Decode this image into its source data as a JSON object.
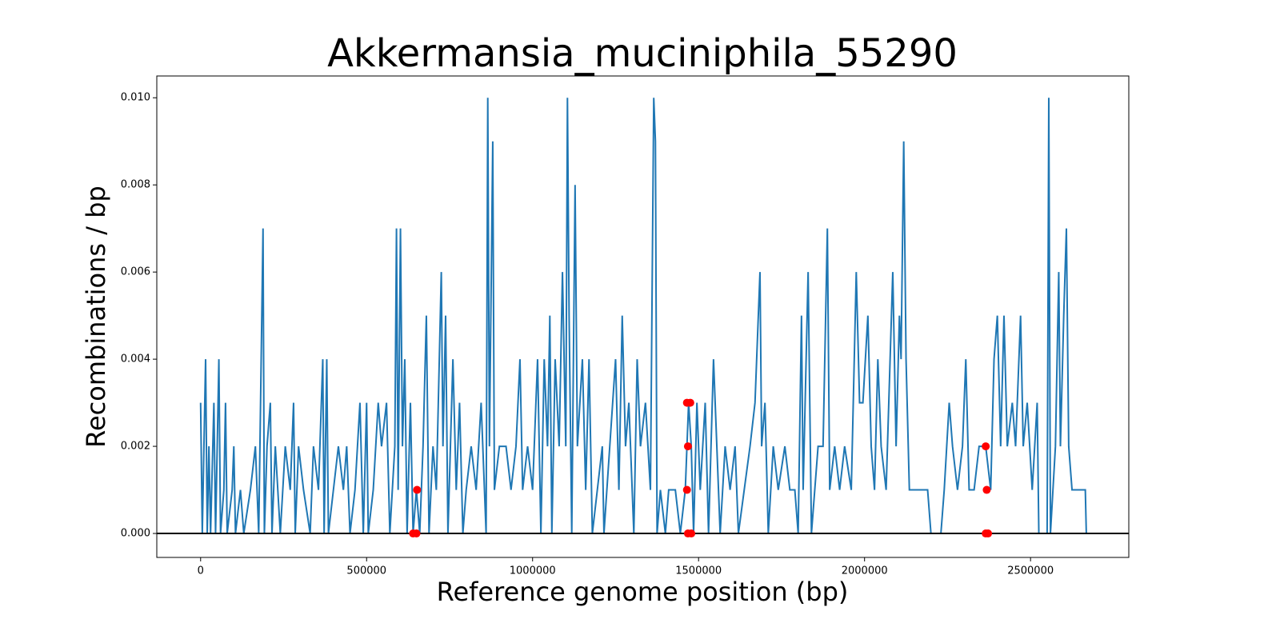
{
  "chart_data": {
    "type": "line",
    "title": "Akkermansia_muciniphila_55290",
    "xlabel": "Reference genome position (bp)",
    "ylabel": "Recombinations / bp",
    "xlim": [
      -132000,
      2796000
    ],
    "ylim": [
      -0.00055,
      0.0105
    ],
    "xticks": [
      0,
      500000,
      1000000,
      1500000,
      2000000,
      2500000
    ],
    "yticks": [
      {
        "value": 0,
        "label": "0.000"
      },
      {
        "value": 0.002,
        "label": "0.002"
      },
      {
        "value": 0.004,
        "label": "0.004"
      },
      {
        "value": 0.006,
        "label": "0.006"
      },
      {
        "value": 0.008,
        "label": "0.008"
      },
      {
        "value": 0.01,
        "label": "0.010"
      }
    ],
    "hline": 0,
    "series": [
      {
        "type": "line",
        "color": "#1f77b4",
        "x": [
          0,
          5000,
          10000,
          15000,
          20000,
          25000,
          30000,
          40000,
          45000,
          55000,
          60000,
          70000,
          75000,
          80000,
          95000,
          100000,
          105000,
          120000,
          130000,
          150000,
          165000,
          175000,
          188000,
          192000,
          200000,
          210000,
          215000,
          225000,
          240000,
          255000,
          270000,
          280000,
          285000,
          295000,
          310000,
          330000,
          340000,
          355000,
          368000,
          372000,
          380000,
          385000,
          400000,
          415000,
          430000,
          440000,
          450000,
          465000,
          480000,
          490000,
          500000,
          505000,
          520000,
          535000,
          545000,
          560000,
          570000,
          585000,
          590000,
          595000,
          602000,
          608000,
          615000,
          622000,
          632000,
          640000,
          650000,
          660000,
          670000,
          680000,
          688000,
          700000,
          710000,
          725000,
          730000,
          738000,
          745000,
          760000,
          770000,
          780000,
          790000,
          800000,
          815000,
          830000,
          845000,
          860000,
          865000,
          870000,
          880000,
          885000,
          900000,
          920000,
          935000,
          950000,
          962000,
          970000,
          985000,
          1000000,
          1015000,
          1025000,
          1035000,
          1045000,
          1052000,
          1058000,
          1068000,
          1080000,
          1090000,
          1100000,
          1105000,
          1110000,
          1118000,
          1128000,
          1135000,
          1150000,
          1160000,
          1170000,
          1180000,
          1210000,
          1215000,
          1250000,
          1260000,
          1270000,
          1280000,
          1290000,
          1305000,
          1315000,
          1325000,
          1340000,
          1355000,
          1365000,
          1370000,
          1375000,
          1385000,
          1400000,
          1410000,
          1430000,
          1445000,
          1460000,
          1470000,
          1478000,
          1485000,
          1495000,
          1505000,
          1520000,
          1530000,
          1545000,
          1555000,
          1565000,
          1580000,
          1595000,
          1610000,
          1620000,
          1655000,
          1670000,
          1685000,
          1690000,
          1700000,
          1710000,
          1725000,
          1740000,
          1760000,
          1775000,
          1790000,
          1800000,
          1810000,
          1815000,
          1830000,
          1835000,
          1840000,
          1860000,
          1875000,
          1888000,
          1895000,
          1910000,
          1925000,
          1940000,
          1960000,
          1975000,
          1985000,
          1995000,
          2010000,
          2020000,
          2030000,
          2040000,
          2050000,
          2065000,
          2085000,
          2095000,
          2105000,
          2110000,
          2118000,
          2125000,
          2135000,
          2150000,
          2170000,
          2190000,
          2200000,
          2230000,
          2240000,
          2255000,
          2265000,
          2280000,
          2295000,
          2305000,
          2315000,
          2330000,
          2345000,
          2365000,
          2380000,
          2390000,
          2400000,
          2410000,
          2420000,
          2430000,
          2445000,
          2455000,
          2470000,
          2478000,
          2490000,
          2505000,
          2520000,
          2525000,
          2550000,
          2555000,
          2560000,
          2575000,
          2585000,
          2590000,
          2600000,
          2608000,
          2615000,
          2625000,
          2640000,
          2655000,
          2665000,
          2668000
        ],
        "values": [
          0.003,
          0,
          0.002,
          0.004,
          0,
          0.002,
          0,
          0.003,
          0,
          0.004,
          0,
          0.001,
          0.003,
          0,
          0.001,
          0.002,
          0,
          0.001,
          0,
          0.001,
          0.002,
          0,
          0.007,
          0,
          0.002,
          0.003,
          0,
          0.002,
          0,
          0.002,
          0.001,
          0.003,
          0,
          0.002,
          0.001,
          0,
          0.002,
          0.001,
          0.004,
          0,
          0.004,
          0,
          0.001,
          0.002,
          0.001,
          0.002,
          0,
          0.001,
          0.003,
          0,
          0.003,
          0,
          0.001,
          0.003,
          0.002,
          0.003,
          0,
          0.002,
          0.007,
          0.001,
          0.007,
          0.002,
          0.004,
          0,
          0.003,
          0,
          0.001,
          0,
          0.002,
          0.005,
          0,
          0.002,
          0.001,
          0.006,
          0.002,
          0.005,
          0,
          0.004,
          0.001,
          0.003,
          0,
          0.001,
          0.002,
          0.001,
          0.003,
          0,
          0.01,
          0.002,
          0.009,
          0.001,
          0.002,
          0.002,
          0.001,
          0.002,
          0.004,
          0.001,
          0.002,
          0.001,
          0.004,
          0,
          0.004,
          0.002,
          0.005,
          0,
          0.004,
          0.002,
          0.006,
          0.002,
          0.01,
          0.005,
          0,
          0.008,
          0.002,
          0.004,
          0.001,
          0.004,
          0,
          0.002,
          0,
          0.004,
          0.001,
          0.005,
          0.002,
          0.003,
          0,
          0.004,
          0.002,
          0.003,
          0.001,
          0.01,
          0.009,
          0,
          0.001,
          0,
          0.001,
          0.001,
          0,
          0.001,
          0.003,
          0.002,
          0,
          0.003,
          0.001,
          0.003,
          0,
          0.004,
          0.002,
          0,
          0.002,
          0.001,
          0.002,
          0,
          0.002,
          0.003,
          0.006,
          0.002,
          0.003,
          0,
          0.002,
          0.001,
          0.002,
          0.001,
          0.001,
          0,
          0.005,
          0.001,
          0.006,
          0.003,
          0,
          0.002,
          0.002,
          0.007,
          0.001,
          0.002,
          0.001,
          0.002,
          0.001,
          0.006,
          0.003,
          0.003,
          0.005,
          0.002,
          0.001,
          0.004,
          0.002,
          0.001,
          0.006,
          0.002,
          0.005,
          0.004,
          0.009,
          0.004,
          0.001,
          0.001,
          0.001,
          0.001,
          0,
          0,
          0.001,
          0.003,
          0.002,
          0.001,
          0.002,
          0.004,
          0.001,
          0.001,
          0.002,
          0.002,
          0.001,
          0.004,
          0.005,
          0.002,
          0.005,
          0.002,
          0.003,
          0.002,
          0.005,
          0.002,
          0.003,
          0.001,
          0.003,
          0,
          0,
          0.01,
          0,
          0.002,
          0.006,
          0.002,
          0.005,
          0.007,
          0.002,
          0.001,
          0.001,
          0.001,
          0.001,
          0
        ]
      },
      {
        "type": "scatter",
        "color": "red",
        "x": [
          640000,
          650000,
          652000,
          1465000,
          1475000,
          1468000,
          1465000,
          1468000,
          1478000,
          2365000,
          2368000,
          2365000,
          2372000
        ],
        "values": [
          0,
          0,
          0.001,
          0.003,
          0.003,
          0.002,
          0.001,
          0,
          0,
          0.002,
          0.001,
          0,
          0
        ]
      }
    ]
  }
}
